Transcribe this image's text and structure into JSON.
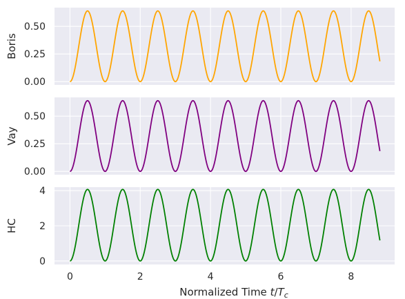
{
  "chart_data": {
    "type": "line",
    "xlabel": "Normalized Time t/Tc",
    "xlabel_parts": {
      "main": "Normalized Time ",
      "t": "t",
      "slash": "/",
      "T": "T",
      "sub": "c"
    },
    "xlim": [
      -0.44,
      9.24
    ],
    "xticks": [
      0,
      2,
      4,
      6,
      8
    ],
    "x_end": 8.82,
    "grid": true,
    "style": "seaborn-darkgrid",
    "panels": [
      {
        "ylabel": "Boris",
        "color": "#ffa500",
        "ylim": [
          -0.03,
          0.67
        ],
        "yticks": [
          0.0,
          0.25,
          0.5
        ],
        "ytick_labels": [
          "0.00",
          "0.25",
          "0.50"
        ],
        "series": {
          "name": "Boris",
          "amplitude": 0.64,
          "period": 1.0,
          "function": "amplitude * sin^2(pi * t / period)"
        }
      },
      {
        "ylabel": "Vay",
        "color": "#800080",
        "ylim": [
          -0.03,
          0.67
        ],
        "yticks": [
          0.0,
          0.25,
          0.5
        ],
        "ytick_labels": [
          "0.00",
          "0.25",
          "0.50"
        ],
        "series": {
          "name": "Vay",
          "amplitude": 0.64,
          "period": 1.0,
          "function": "amplitude * sin^2(pi * t / period)"
        }
      },
      {
        "ylabel": "HC",
        "color": "#008000",
        "ylim": [
          -0.2,
          4.2
        ],
        "yticks": [
          0,
          2,
          4
        ],
        "ytick_labels": [
          "0",
          "2",
          "4"
        ],
        "series": {
          "name": "HC",
          "amplitude": 4.07,
          "period": 1.0,
          "function": "amplitude * sin^2(pi * t / period)"
        }
      }
    ]
  }
}
